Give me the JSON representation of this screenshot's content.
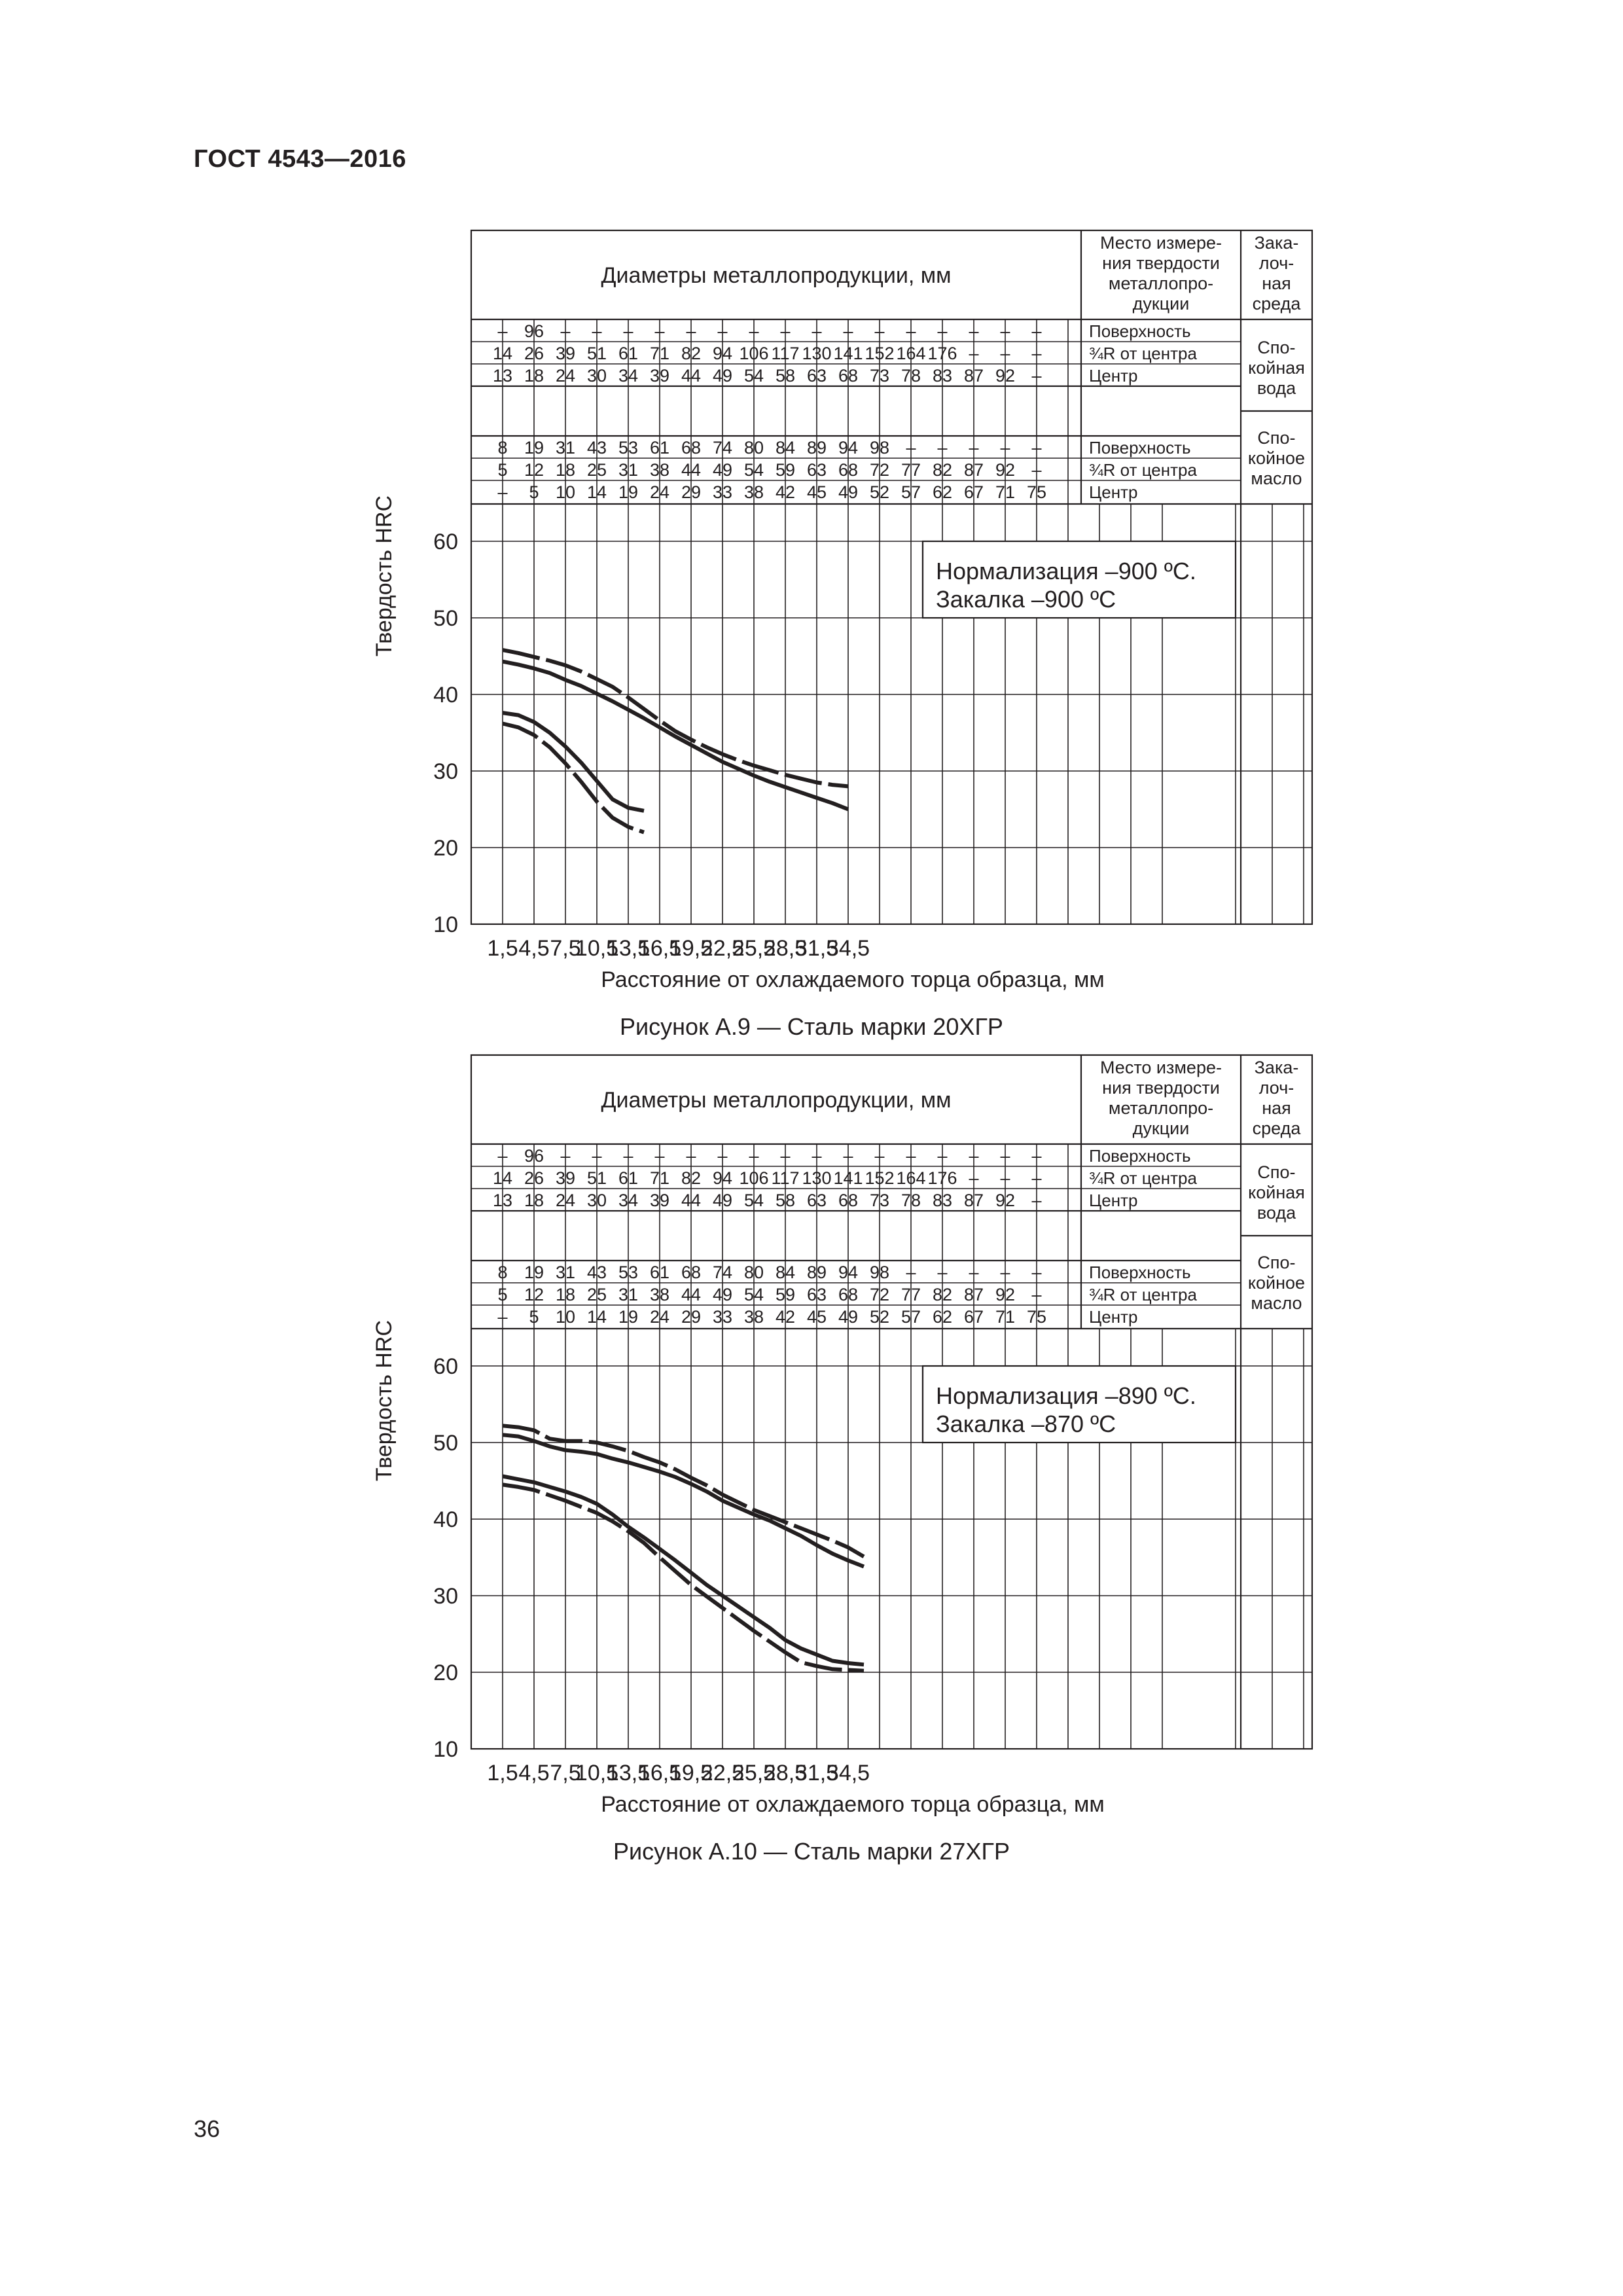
{
  "page": {
    "header": "ГОСТ 4543—2016",
    "page_number": "36"
  },
  "table_labels": {
    "diameters_title": "Диаметры металлопродукции, мм",
    "place_header": [
      "Место измере-",
      "ния твердости",
      "металлопро-",
      "дукции"
    ],
    "medium_header": [
      "Зака-",
      "лоч-",
      "ная",
      "среда"
    ],
    "water_label": [
      "Спо-",
      "койная",
      "вода"
    ],
    "oil_label": [
      "Спо-",
      "койное",
      "масло"
    ],
    "place_surface": "Поверхность",
    "place_three_quarter": "¾R от центра",
    "place_center": "Центр"
  },
  "diameter_rows": {
    "water_surface": [
      "–",
      "96",
      "–",
      "–",
      "–",
      "–",
      "–",
      "–",
      "–",
      "–",
      "–",
      "–",
      "–",
      "–",
      "–",
      "–",
      "–",
      "–"
    ],
    "water_three_quarter": [
      "14",
      "26",
      "39",
      "51",
      "61",
      "71",
      "82",
      "94",
      "106",
      "117",
      "130",
      "141",
      "152",
      "164",
      "176",
      "–",
      "–",
      "–"
    ],
    "water_center": [
      "13",
      "18",
      "24",
      "30",
      "34",
      "39",
      "44",
      "49",
      "54",
      "58",
      "63",
      "68",
      "73",
      "78",
      "83",
      "87",
      "92",
      "–"
    ],
    "oil_surface": [
      "8",
      "19",
      "31",
      "43",
      "53",
      "61",
      "68",
      "74",
      "80",
      "84",
      "89",
      "94",
      "98",
      "–",
      "–",
      "–",
      "–",
      "–"
    ],
    "oil_three_quarter": [
      "5",
      "12",
      "18",
      "25",
      "31",
      "38",
      "44",
      "49",
      "54",
      "59",
      "63",
      "68",
      "72",
      "77",
      "82",
      "87",
      "92",
      "–"
    ],
    "oil_center": [
      "–",
      "5",
      "10",
      "14",
      "19",
      "24",
      "29",
      "33",
      "38",
      "42",
      "45",
      "49",
      "52",
      "57",
      "62",
      "67",
      "71",
      "75"
    ]
  },
  "axes": {
    "ylabel": "Твердость HRC",
    "xlabel": "Расстояние от охлаждаемого торца образца, мм",
    "x_ticks": [
      "1,5",
      "4,5",
      "7,5",
      "10,5",
      "13,5",
      "16,5",
      "19,5",
      "22,5",
      "25,5",
      "28,5",
      "31,5",
      "34,5"
    ],
    "y_ticks": [
      "10",
      "20",
      "30",
      "40",
      "50",
      "60"
    ]
  },
  "figures": [
    {
      "caption": "Рисунок А.9 — Сталь марки 20ХГР",
      "annotation": [
        "Нормализация –900 ºС.",
        "Закалка –900 ºС"
      ]
    },
    {
      "caption": "Рисунок А.10 — Сталь марки 27ХГР",
      "annotation": [
        "Нормализация –890 ºС.",
        "Закалка –870 ºС"
      ]
    }
  ],
  "chart_data": [
    {
      "type": "line",
      "title": "Рисунок А.9 — Сталь марки 20ХГР",
      "xlabel": "Расстояние от охлаждаемого торца образца, мм",
      "ylabel": "Твердость HRC",
      "xlim": [
        0,
        40.5
      ],
      "ylim": [
        10,
        60
      ],
      "grid": true,
      "series": [
        {
          "style": "dashed",
          "x": [
            1.5,
            3,
            4.5,
            6,
            7.5,
            9,
            10.5,
            12,
            13.5,
            15,
            16.5,
            18,
            19.5,
            21,
            22.5,
            24,
            25.5,
            27,
            28.5,
            30,
            31.5,
            33,
            34.5
          ],
          "y": [
            45.8,
            45.4,
            44.9,
            44.4,
            43.8,
            43.0,
            42.0,
            41.0,
            39.6,
            38.1,
            36.6,
            35.2,
            34.1,
            33.1,
            32.2,
            31.4,
            30.7,
            30.1,
            29.5,
            29.0,
            28.5,
            28.2,
            28.0
          ]
        },
        {
          "style": "solid",
          "x": [
            1.5,
            3,
            4.5,
            6,
            7.5,
            9,
            10.5,
            12,
            13.5,
            15,
            16.5,
            18,
            19.5,
            21,
            22.5,
            24,
            25.5,
            27,
            28.5,
            30,
            31.5,
            33,
            34.5
          ],
          "y": [
            44.3,
            43.9,
            43.4,
            42.8,
            41.9,
            41.1,
            40.1,
            39.1,
            38.0,
            36.9,
            35.7,
            34.5,
            33.4,
            32.3,
            31.2,
            30.3,
            29.4,
            28.6,
            27.9,
            27.2,
            26.5,
            25.8,
            25.0
          ]
        },
        {
          "style": "solid",
          "x": [
            1.5,
            3,
            4.5,
            6,
            7.5,
            9,
            10.5,
            12,
            13.5,
            15
          ],
          "y": [
            37.6,
            37.3,
            36.4,
            35.0,
            33.2,
            31.1,
            28.7,
            26.3,
            25.2,
            24.8
          ]
        },
        {
          "style": "dashed",
          "x": [
            1.5,
            3,
            4.5,
            6,
            7.5,
            9,
            10.5,
            12,
            13.5,
            15
          ],
          "y": [
            36.2,
            35.7,
            34.7,
            33.1,
            31.0,
            28.6,
            26.0,
            23.9,
            22.7,
            22.0
          ]
        }
      ]
    },
    {
      "type": "line",
      "title": "Рисунок А.10 — Сталь марки 27ХГР",
      "xlabel": "Расстояние от охлаждаемого торца образца, мм",
      "ylabel": "Твердость HRC",
      "xlim": [
        0,
        40.5
      ],
      "ylim": [
        10,
        60
      ],
      "grid": true,
      "series": [
        {
          "style": "dashed",
          "x": [
            1.5,
            3,
            4.5,
            6,
            7.5,
            9,
            10.5,
            12,
            13.5,
            15,
            16.5,
            18,
            19.5,
            21,
            22.5,
            24,
            25.5,
            27,
            28.5,
            30,
            31.5,
            33,
            34.5,
            36
          ],
          "y": [
            52.2,
            52.0,
            51.6,
            50.5,
            50.2,
            50.2,
            50.0,
            49.5,
            48.9,
            48.1,
            47.4,
            46.5,
            45.4,
            44.4,
            43.2,
            42.2,
            41.2,
            40.4,
            39.6,
            38.8,
            38.0,
            37.2,
            36.3,
            35.1
          ]
        },
        {
          "style": "solid",
          "x": [
            1.5,
            3,
            4.5,
            6,
            7.5,
            9,
            10.5,
            12,
            13.5,
            15,
            16.5,
            18,
            19.5,
            21,
            22.5,
            24,
            25.5,
            27,
            28.5,
            30,
            31.5,
            33,
            34.5,
            36
          ],
          "y": [
            51.0,
            50.8,
            50.2,
            49.5,
            49.0,
            48.8,
            48.5,
            47.9,
            47.4,
            46.8,
            46.2,
            45.5,
            44.6,
            43.6,
            42.4,
            41.5,
            40.6,
            39.8,
            38.8,
            37.8,
            36.6,
            35.5,
            34.6,
            33.8
          ]
        },
        {
          "style": "solid",
          "x": [
            1.5,
            3,
            4.5,
            6,
            7.5,
            9,
            10.5,
            12,
            13.5,
            15,
            16.5,
            18,
            19.5,
            21,
            22.5,
            24,
            25.5,
            27,
            28.5,
            30,
            31.5,
            33,
            34.5,
            36
          ],
          "y": [
            45.6,
            45.2,
            44.8,
            44.2,
            43.6,
            42.9,
            42.0,
            40.6,
            39.0,
            37.6,
            36.1,
            34.6,
            33.0,
            31.4,
            30.0,
            28.6,
            27.2,
            25.8,
            24.2,
            23.1,
            22.3,
            21.5,
            21.2,
            21.0
          ]
        },
        {
          "style": "dashed",
          "x": [
            1.5,
            3,
            4.5,
            6,
            7.5,
            9,
            10.5,
            12,
            13.5,
            15,
            16.5,
            18,
            19.5,
            21,
            22.5,
            24,
            25.5,
            27,
            28.5,
            30,
            31.5,
            33,
            34.5,
            36
          ],
          "y": [
            44.5,
            44.2,
            43.8,
            43.1,
            42.4,
            41.6,
            40.8,
            39.7,
            38.4,
            36.9,
            35.0,
            33.2,
            31.4,
            29.9,
            28.4,
            26.9,
            25.4,
            24.0,
            22.6,
            21.3,
            20.8,
            20.4,
            20.3,
            20.2
          ]
        }
      ]
    }
  ]
}
